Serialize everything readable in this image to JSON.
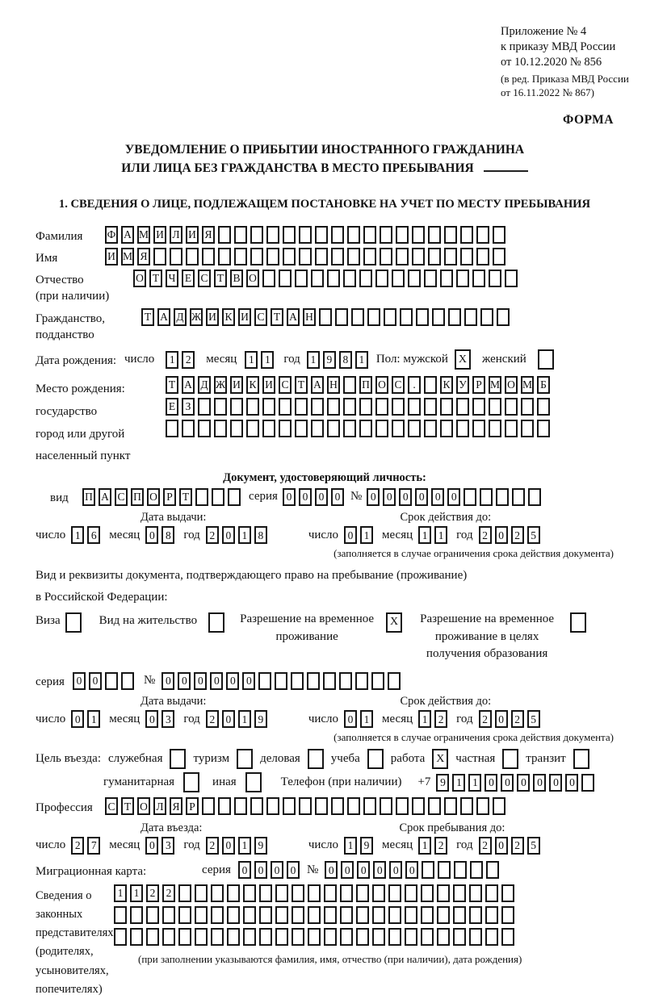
{
  "words": {
    "series": "серия",
    "number": "№",
    "day": "число",
    "month": "месяц",
    "year": "год"
  },
  "header": {
    "note_line1": "Приложение № 4",
    "note_line2": "к приказу МВД России",
    "note_line3": "от 10.12.2020 № 856",
    "amend_line1": "(в ред. Приказа МВД России",
    "amend_line2": "от 16.11.2022 № 867)",
    "form_label": "ФОРМА"
  },
  "title": {
    "line1": "УВЕДОМЛЕНИЕ О ПРИБЫТИИ ИНОСТРАННОГО ГРАЖДАНИНА",
    "line2": "ИЛИ ЛИЦА БЕЗ ГРАЖДАНСТВА В МЕСТО ПРЕБЫВАНИЯ"
  },
  "section1": {
    "heading": "1. СВЕДЕНИЯ О ЛИЦЕ, ПОДЛЕЖАЩЕМ ПОСТАНОВКЕ НА УЧЕТ ПО МЕСТУ ПРЕБЫВАНИЯ",
    "surname": {
      "label": "Фамилия",
      "cells": {
        "text": "ФАМИЛИЯ",
        "len": 25
      }
    },
    "given_name": {
      "label": "Имя",
      "cells": {
        "text": "ИМЯ",
        "len": 25
      }
    },
    "patronymic": {
      "label1": "Отчество",
      "label2": "(при наличии)",
      "cells": {
        "text": "ОТЧЕСТВО",
        "len": 24
      }
    },
    "citizenship": {
      "label1": "Гражданство,",
      "label2": "подданство",
      "cells": {
        "text": "ТАДЖИКИСТАН",
        "len": 23
      }
    },
    "birth_date": {
      "label": "Дата рождения:",
      "day": {
        "text": "12",
        "len": 2
      },
      "month": {
        "text": "11",
        "len": 2
      },
      "year": {
        "text": "1981",
        "len": 4
      },
      "sex_label": "Пол: мужской",
      "male_mark": "X",
      "female_label": "женский",
      "female_mark": ""
    },
    "birth_place": {
      "label1": "Место рождения:",
      "label2": "государство",
      "label3": "город или другой",
      "label4": "населенный пункт",
      "row1": {
        "text": "ТАДЖИКИСТАН ПОС. КУРМОМБ",
        "len": 24
      },
      "row2": {
        "text": "ЕЗ",
        "len": 24
      },
      "row3": {
        "text": "",
        "len": 24
      }
    },
    "identity_doc": {
      "heading": "Документ, удостоверяющий личность:",
      "kind_label": "вид",
      "kind": {
        "text": "ПАСПОРТ",
        "len": 10
      },
      "series": {
        "text": "0000",
        "len": 4
      },
      "number": {
        "text": "000000",
        "len": 11
      },
      "issue_header": "Дата выдачи:",
      "valid_header": "Срок действия до:",
      "issue": {
        "day": {
          "text": "16",
          "len": 2
        },
        "month": {
          "text": "08",
          "len": 2
        },
        "year": {
          "text": "2018",
          "len": 4
        }
      },
      "valid": {
        "day": {
          "text": "01",
          "len": 2
        },
        "month": {
          "text": "11",
          "len": 2
        },
        "year": {
          "text": "2025",
          "len": 4
        }
      },
      "caption": "(заполняется в случае ограничения срока действия документа)"
    },
    "residence_doc": {
      "intro1": "Вид и реквизиты документа, подтверждающего право на пребывание (проживание)",
      "intro2": "в Российской Федерации:",
      "visa_label": "Виза",
      "visa_mark": "",
      "residence_permit_label": "Вид на жительство",
      "residence_permit_mark": "",
      "temp_permit_label": "Разрешение на временное проживание",
      "temp_permit_mark": "X",
      "temp_permit_edu_label": "Разрешение на временное проживание в целях получения образования",
      "temp_permit_edu_mark": "",
      "series": {
        "text": "00",
        "len": 4
      },
      "number": {
        "text": "000000",
        "len": 15
      },
      "issue_header": "Дата выдачи:",
      "valid_header": "Срок действия до:",
      "issue": {
        "day": {
          "text": "01",
          "len": 2
        },
        "month": {
          "text": "03",
          "len": 2
        },
        "year": {
          "text": "2019",
          "len": 4
        }
      },
      "valid": {
        "day": {
          "text": "01",
          "len": 2
        },
        "month": {
          "text": "12",
          "len": 2
        },
        "year": {
          "text": "2025",
          "len": 4
        }
      },
      "caption": "(заполняется в случае ограничения срока действия документа)"
    },
    "purpose": {
      "label": "Цель въезда:",
      "opt1_label": "служебная",
      "opt1_mark": "",
      "opt2_label": "туризм",
      "opt2_mark": "",
      "opt3_label": "деловая",
      "opt3_mark": "",
      "opt4_label": "учеба",
      "opt4_mark": "",
      "opt5_label": "работа",
      "opt5_mark": "X",
      "opt6_label": "частная",
      "opt6_mark": "",
      "opt7_label": "транзит",
      "opt7_mark": "",
      "opt8_label": "гуманитарная",
      "opt8_mark": "",
      "opt9_label": "иная",
      "opt9_mark": ""
    },
    "phone": {
      "label": "Телефон (при наличии)",
      "prefix": "+7",
      "cells": {
        "text": "911000000",
        "len": 10
      }
    },
    "profession": {
      "label": "Профессия",
      "cells": {
        "text": "СТОЛЯР",
        "len": 25
      }
    },
    "entry": {
      "entry_header": "Дата въезда:",
      "stay_header": "Срок пребывания до:",
      "entry_date": {
        "day": {
          "text": "27",
          "len": 2
        },
        "month": {
          "text": "03",
          "len": 2
        },
        "year": {
          "text": "2019",
          "len": 4
        }
      },
      "stay_until": {
        "day": {
          "text": "19",
          "len": 2
        },
        "month": {
          "text": "12",
          "len": 2
        },
        "year": {
          "text": "2025",
          "len": 4
        }
      }
    },
    "migration_card": {
      "label": "Миграционная карта:",
      "series": {
        "text": "0000",
        "len": 4
      },
      "number": {
        "text": "000000",
        "len": 11
      }
    },
    "representatives": {
      "label1": "Сведения о",
      "label2": "законных",
      "label3": "представителях",
      "label4": "(родителях,",
      "label5": "усыновителях,",
      "label6": "попечителях)",
      "row1": {
        "text": "1122",
        "len": 25
      },
      "row2": {
        "text": "",
        "len": 25
      },
      "row3": {
        "text": "",
        "len": 25
      },
      "caption": "(при заполнении указываются фамилия, имя, отчество (при наличии), дата рождения)"
    }
  }
}
